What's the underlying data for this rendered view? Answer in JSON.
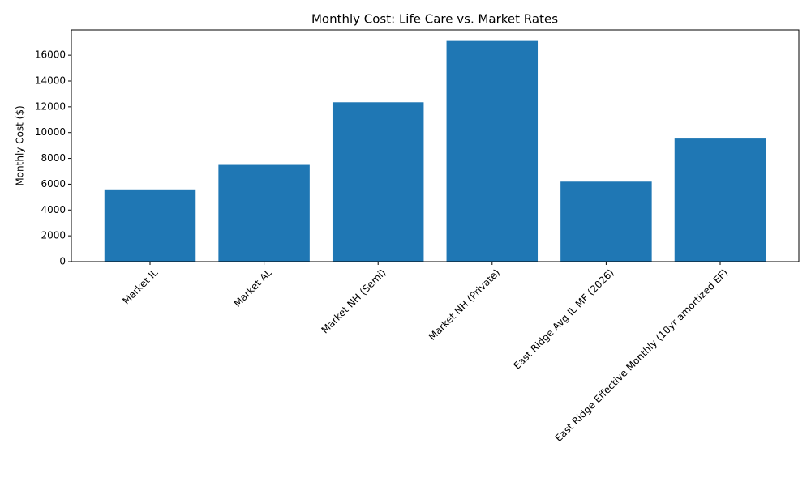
{
  "chart_data": {
    "type": "bar",
    "title": "Monthly Cost: Life Care vs. Market Rates",
    "y_label": "Monthly Cost ($)",
    "categories": [
      "Market IL",
      "Market AL",
      "Market NH (Semi)",
      "Market NH (Private)",
      "East Ridge Avg IL MF (2026)",
      "East Ridge Effective Monthly (10yr amortized EF)"
    ],
    "values": [
      5600,
      7500,
      12350,
      17100,
      6200,
      9600
    ],
    "color": "#1f77b4",
    "ylim": [
      0,
      17955
    ],
    "yticks": [
      0,
      2000,
      4000,
      6000,
      8000,
      10000,
      12000,
      14000,
      16000
    ],
    "grid": false
  }
}
